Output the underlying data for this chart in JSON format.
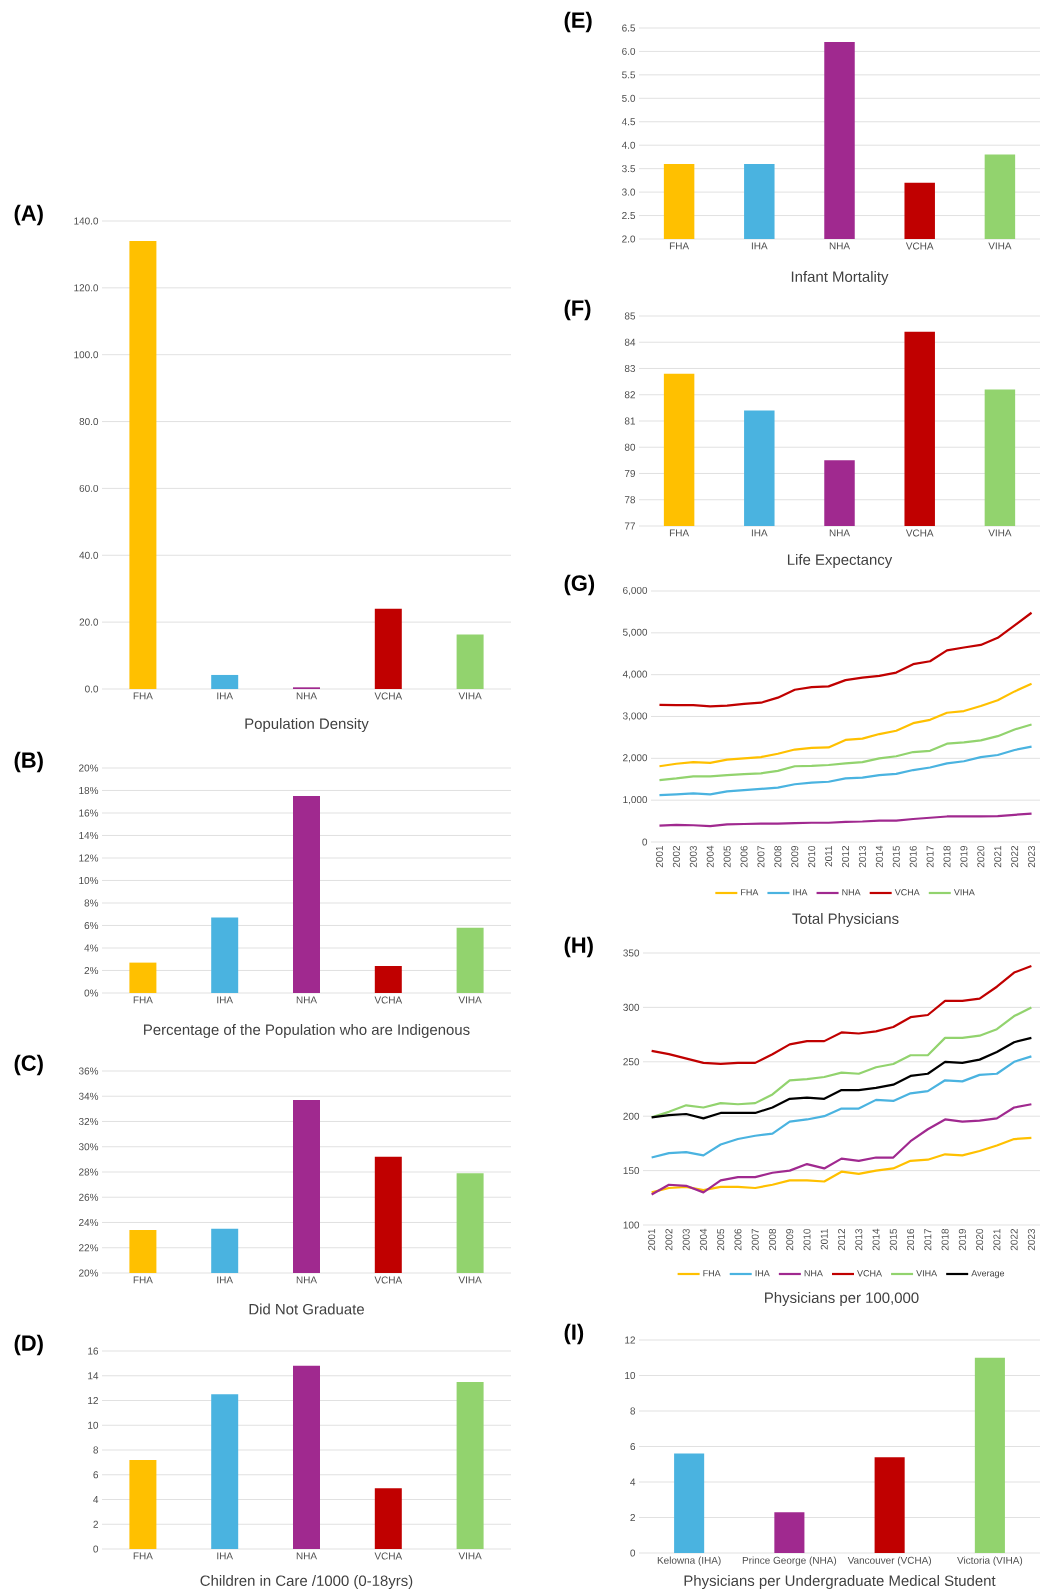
{
  "chart_data": [
    {
      "type": "bar",
      "title": "(A)",
      "xlabel": "Population Density",
      "categories": [
        "FHA",
        "IHA",
        "NHA",
        "VCHA",
        "VIHA"
      ],
      "values": [
        134.0,
        4.2,
        0.5,
        24.0,
        16.3
      ],
      "colors": [
        "#ffc000",
        "#4ab3e0",
        "#a0298f",
        "#c00000",
        "#92d36e"
      ],
      "ylim": [
        0,
        140
      ],
      "yticks": [
        {
          "value": 0,
          "label": "0.0"
        },
        {
          "value": 20,
          "label": "20.0"
        },
        {
          "value": 40,
          "label": "40.0"
        },
        {
          "value": 60,
          "label": "60.0"
        },
        {
          "value": 80,
          "label": "80.0"
        },
        {
          "value": 100,
          "label": "100.0"
        },
        {
          "value": 120,
          "label": "120.0"
        },
        {
          "value": 140,
          "label": "140.0"
        }
      ],
      "grid": "y"
    },
    {
      "type": "bar",
      "title": "(B)",
      "xlabel": "Percentage of the Population who are Indigenous",
      "categories": [
        "FHA",
        "IHA",
        "NHA",
        "VCHA",
        "VIHA"
      ],
      "values": [
        2.7,
        6.7,
        17.5,
        2.4,
        5.8
      ],
      "colors": [
        "#ffc000",
        "#4ab3e0",
        "#a0298f",
        "#c00000",
        "#92d36e"
      ],
      "ylim": [
        0,
        20
      ],
      "yticks": [
        {
          "value": 0,
          "label": "0%"
        },
        {
          "value": 2,
          "label": "2%"
        },
        {
          "value": 4,
          "label": "4%"
        },
        {
          "value": 6,
          "label": "6%"
        },
        {
          "value": 8,
          "label": "8%"
        },
        {
          "value": 10,
          "label": "10%"
        },
        {
          "value": 12,
          "label": "12%"
        },
        {
          "value": 14,
          "label": "14%"
        },
        {
          "value": 16,
          "label": "16%"
        },
        {
          "value": 18,
          "label": "18%"
        },
        {
          "value": 20,
          "label": "20%"
        }
      ],
      "grid": "y"
    },
    {
      "type": "bar",
      "title": "(C)",
      "xlabel": "Did Not Graduate",
      "categories": [
        "FHA",
        "IHA",
        "NHA",
        "VCHA",
        "VIHA"
      ],
      "values": [
        23.4,
        23.5,
        33.7,
        29.2,
        27.9
      ],
      "colors": [
        "#ffc000",
        "#4ab3e0",
        "#a0298f",
        "#c00000",
        "#92d36e"
      ],
      "ylim": [
        20,
        36
      ],
      "yticks": [
        {
          "value": 20,
          "label": "20%"
        },
        {
          "value": 22,
          "label": "22%"
        },
        {
          "value": 24,
          "label": "24%"
        },
        {
          "value": 26,
          "label": "26%"
        },
        {
          "value": 28,
          "label": "28%"
        },
        {
          "value": 30,
          "label": "30%"
        },
        {
          "value": 32,
          "label": "32%"
        },
        {
          "value": 34,
          "label": "34%"
        },
        {
          "value": 36,
          "label": "36%"
        }
      ],
      "grid": "y"
    },
    {
      "type": "bar",
      "title": "(D)",
      "xlabel": "Children in Care /1000 (0-18yrs)",
      "categories": [
        "FHA",
        "IHA",
        "NHA",
        "VCHA",
        "VIHA"
      ],
      "values": [
        7.2,
        12.5,
        14.8,
        4.9,
        13.5
      ],
      "colors": [
        "#ffc000",
        "#4ab3e0",
        "#a0298f",
        "#c00000",
        "#92d36e"
      ],
      "ylim": [
        0,
        16
      ],
      "yticks": [
        0,
        2,
        4,
        6,
        8,
        10,
        12,
        14,
        16
      ],
      "grid": "y"
    },
    {
      "type": "bar",
      "title": "(E)",
      "xlabel": "Infant Mortality",
      "categories": [
        "FHA",
        "IHA",
        "NHA",
        "VCHA",
        "VIHA"
      ],
      "values": [
        3.6,
        3.6,
        6.2,
        3.2,
        3.8
      ],
      "colors": [
        "#ffc000",
        "#4ab3e0",
        "#a0298f",
        "#c00000",
        "#92d36e"
      ],
      "ylim": [
        2,
        6.5
      ],
      "yticks": [
        {
          "value": 2,
          "label": "2.0"
        },
        {
          "value": 2.5,
          "label": "2.5"
        },
        {
          "value": 3,
          "label": "3.0"
        },
        {
          "value": 3.5,
          "label": "3.5"
        },
        {
          "value": 4,
          "label": "4.0"
        },
        {
          "value": 4.5,
          "label": "4.5"
        },
        {
          "value": 5,
          "label": "5.0"
        },
        {
          "value": 5.5,
          "label": "5.5"
        },
        {
          "value": 6,
          "label": "6.0"
        },
        {
          "value": 6.5,
          "label": "6.5"
        }
      ],
      "grid": "y"
    },
    {
      "type": "bar",
      "title": "(F)",
      "xlabel": "Life Expectancy",
      "categories": [
        "FHA",
        "IHA",
        "NHA",
        "VCHA",
        "VIHA"
      ],
      "values": [
        82.8,
        81.4,
        79.5,
        84.4,
        82.2
      ],
      "colors": [
        "#ffc000",
        "#4ab3e0",
        "#a0298f",
        "#c00000",
        "#92d36e"
      ],
      "ylim": [
        77,
        85
      ],
      "yticks": [
        77,
        78,
        79,
        80,
        81,
        82,
        83,
        84,
        85
      ],
      "grid": "y"
    },
    {
      "type": "line",
      "title": "(G)",
      "xlabel": "Total Physicians",
      "categories": [
        "2001",
        "2002",
        "2003",
        "2004",
        "2005",
        "2006",
        "2007",
        "2008",
        "2009",
        "2010",
        "2011",
        "2012",
        "2013",
        "2014",
        "2015",
        "2016",
        "2017",
        "2018",
        "2019",
        "2020",
        "2021",
        "2022",
        "2023"
      ],
      "series": [
        {
          "name": "FHA",
          "color": "#ffc000",
          "values": [
            1810,
            1870,
            1910,
            1890,
            1970,
            2000,
            2030,
            2110,
            2210,
            2250,
            2260,
            2440,
            2470,
            2580,
            2660,
            2840,
            2920,
            3090,
            3130,
            3250,
            3390,
            3600,
            3780
          ]
        },
        {
          "name": "IHA",
          "color": "#4ab3e0",
          "values": [
            1120,
            1140,
            1160,
            1140,
            1210,
            1240,
            1270,
            1300,
            1380,
            1420,
            1440,
            1520,
            1540,
            1600,
            1630,
            1720,
            1780,
            1880,
            1930,
            2030,
            2080,
            2200,
            2280
          ]
        },
        {
          "name": "NHA",
          "color": "#a0298f",
          "values": [
            390,
            410,
            400,
            380,
            420,
            430,
            440,
            440,
            450,
            460,
            460,
            480,
            490,
            510,
            510,
            550,
            580,
            610,
            610,
            610,
            620,
            650,
            680
          ]
        },
        {
          "name": "VCHA",
          "color": "#c00000",
          "values": [
            3280,
            3270,
            3270,
            3240,
            3260,
            3300,
            3330,
            3450,
            3640,
            3700,
            3720,
            3870,
            3930,
            3970,
            4050,
            4250,
            4320,
            4580,
            4650,
            4710,
            4880,
            5180,
            5480
          ]
        },
        {
          "name": "VIHA",
          "color": "#92d36e",
          "values": [
            1480,
            1520,
            1570,
            1570,
            1600,
            1620,
            1640,
            1700,
            1810,
            1820,
            1840,
            1880,
            1910,
            2000,
            2050,
            2150,
            2180,
            2350,
            2380,
            2430,
            2530,
            2690,
            2810
          ]
        }
      ],
      "ylim": [
        0,
        6000
      ],
      "yticks": [
        0,
        {
          "value": 1000,
          "label": "1,000"
        },
        {
          "value": 2000,
          "label": "2,000"
        },
        {
          "value": 3000,
          "label": "3,000"
        },
        {
          "value": 4000,
          "label": "4,000"
        },
        {
          "value": 5000,
          "label": "5,000"
        },
        {
          "value": 6000,
          "label": "6,000"
        }
      ],
      "grid": "y",
      "legend": "bottom"
    },
    {
      "type": "line",
      "title": "(H)",
      "xlabel": "Physicians per 100,000",
      "categories": [
        "2001",
        "2002",
        "2003",
        "2004",
        "2005",
        "2006",
        "2007",
        "2008",
        "2009",
        "2010",
        "2011",
        "2012",
        "2013",
        "2014",
        "2015",
        "2016",
        "2017",
        "2018",
        "2019",
        "2020",
        "2021",
        "2022",
        "2023"
      ],
      "series": [
        {
          "name": "FHA",
          "color": "#ffc000",
          "values": [
            130,
            134,
            135,
            132,
            135,
            135,
            134,
            137,
            141,
            141,
            140,
            149,
            147,
            150,
            152,
            159,
            160,
            165,
            164,
            168,
            173,
            179,
            180
          ]
        },
        {
          "name": "IHA",
          "color": "#4ab3e0",
          "values": [
            162,
            166,
            167,
            164,
            174,
            179,
            182,
            184,
            195,
            197,
            200,
            207,
            207,
            215,
            214,
            221,
            223,
            233,
            232,
            238,
            239,
            250,
            255
          ]
        },
        {
          "name": "NHA",
          "color": "#a0298f",
          "values": [
            128,
            137,
            136,
            130,
            141,
            144,
            144,
            148,
            150,
            156,
            152,
            161,
            159,
            162,
            162,
            177,
            188,
            197,
            195,
            196,
            198,
            208,
            211
          ]
        },
        {
          "name": "VCHA",
          "color": "#c00000",
          "values": [
            260,
            257,
            253,
            249,
            248,
            249,
            249,
            257,
            266,
            269,
            269,
            277,
            276,
            278,
            282,
            291,
            293,
            306,
            306,
            308,
            319,
            332,
            338
          ]
        },
        {
          "name": "VIHA",
          "color": "#92d36e",
          "values": [
            199,
            204,
            210,
            208,
            212,
            211,
            212,
            220,
            233,
            234,
            236,
            240,
            239,
            245,
            248,
            256,
            256,
            272,
            272,
            274,
            280,
            292,
            300
          ]
        },
        {
          "name": "Average",
          "color": "#000000",
          "values": [
            199,
            201,
            202,
            198,
            203,
            203,
            203,
            208,
            216,
            217,
            216,
            224,
            224,
            226,
            229,
            237,
            239,
            250,
            249,
            252,
            259,
            268,
            272
          ]
        }
      ],
      "ylim": [
        100,
        350
      ],
      "yticks": [
        100,
        150,
        200,
        250,
        300,
        350
      ],
      "grid": "y",
      "legend": "bottom"
    },
    {
      "type": "bar",
      "title": "(I)",
      "xlabel": "Physicians per Undergraduate Medical Student",
      "categories": [
        "Kelowna (IHA)",
        "Prince George (NHA)",
        "Vancouver (VCHA)",
        "Victoria (VIHA)"
      ],
      "values": [
        5.6,
        2.3,
        5.4,
        11.0
      ],
      "colors": [
        "#4ab3e0",
        "#a0298f",
        "#c00000",
        "#92d36e"
      ],
      "ylim": [
        0,
        12
      ],
      "yticks": [
        0,
        2,
        4,
        6,
        8,
        10,
        12
      ],
      "grid": "y"
    }
  ]
}
